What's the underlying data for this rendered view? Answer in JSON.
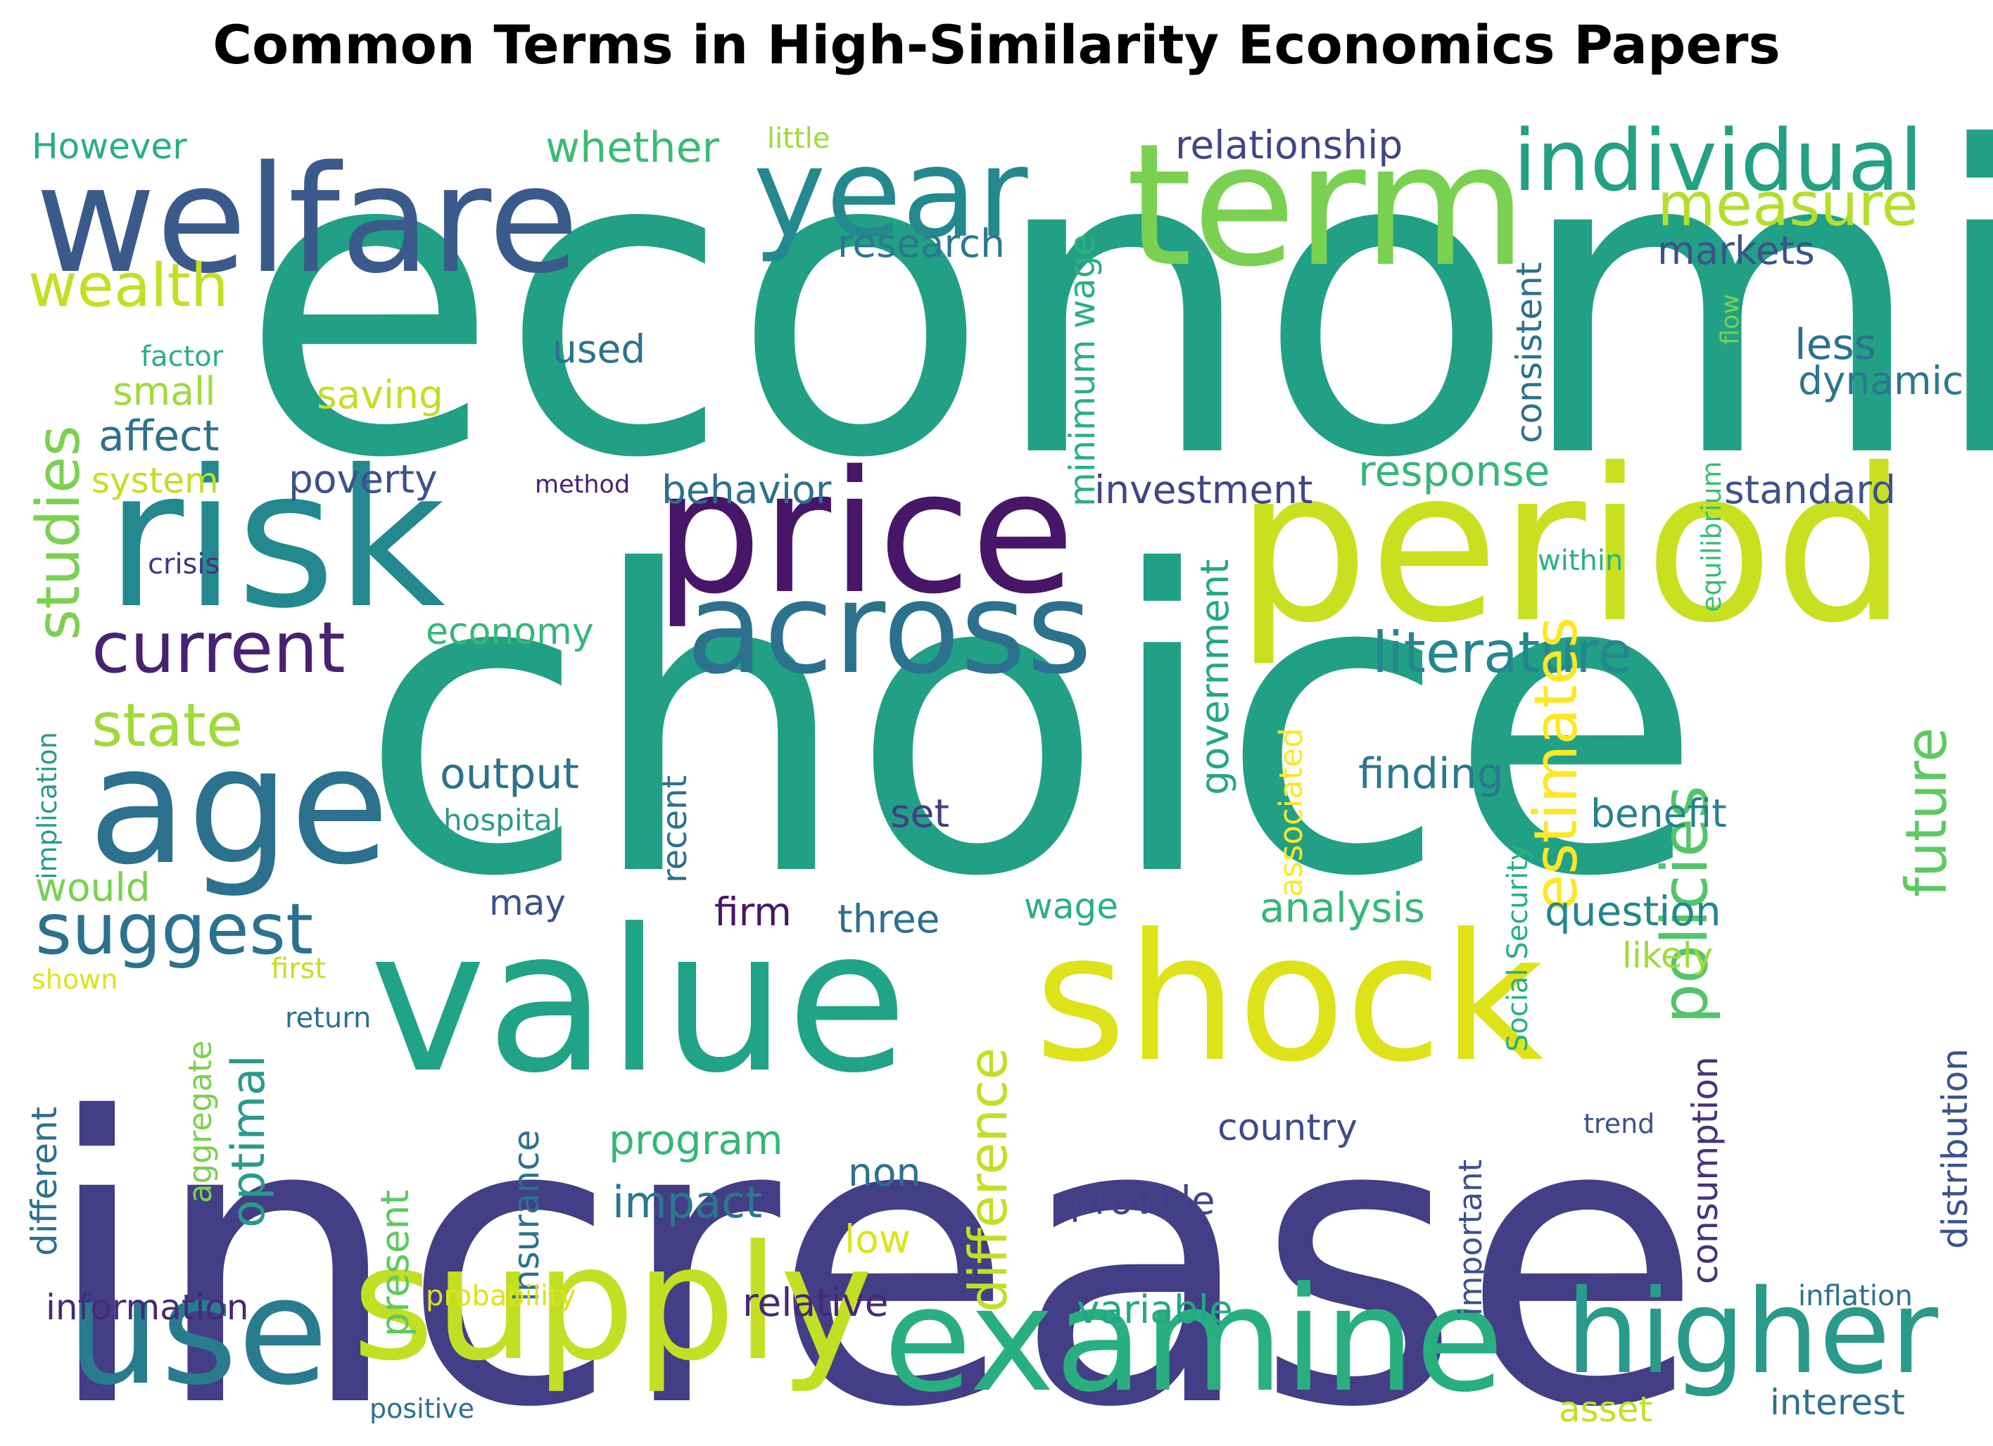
{
  "title": "Common Terms in High-Similarity Economics Papers",
  "colormap": "viridis",
  "words": [
    {
      "text": "economic",
      "color": "#21a085"
    },
    {
      "text": "choice",
      "color": "#21a085"
    },
    {
      "text": "increase",
      "color": "#433e85"
    },
    {
      "text": "welfare",
      "color": "#3b5a8c"
    },
    {
      "text": "year",
      "color": "#23898e"
    },
    {
      "text": "term",
      "color": "#7ad151"
    },
    {
      "text": "individual",
      "color": "#24a084"
    },
    {
      "text": "measure",
      "color": "#b5de2b"
    },
    {
      "text": "risk",
      "color": "#23898e"
    },
    {
      "text": "price",
      "color": "#471669"
    },
    {
      "text": "period",
      "color": "#c8e020"
    },
    {
      "text": "across",
      "color": "#2c718e"
    },
    {
      "text": "age",
      "color": "#2c718e"
    },
    {
      "text": "value",
      "color": "#20a386"
    },
    {
      "text": "shock",
      "color": "#dde318"
    },
    {
      "text": "use",
      "color": "#287c8e"
    },
    {
      "text": "supply",
      "color": "#c2df23"
    },
    {
      "text": "examine",
      "color": "#29af7f"
    },
    {
      "text": "higher",
      "color": "#2a9a8a"
    },
    {
      "text": "wealth",
      "color": "#c2df23"
    },
    {
      "text": "studies",
      "color": "#7ad151"
    },
    {
      "text": "current",
      "color": "#482173"
    },
    {
      "text": "state",
      "color": "#a0da39"
    },
    {
      "text": "suggest",
      "color": "#2c718e"
    },
    {
      "text": "literature",
      "color": "#24868e"
    },
    {
      "text": "estimates",
      "color": "#fde725"
    },
    {
      "text": "policies",
      "color": "#52c569"
    },
    {
      "text": "future",
      "color": "#5ec962"
    },
    {
      "text": "However",
      "color": "#29af7f"
    },
    {
      "text": "whether",
      "color": "#3cbb75"
    },
    {
      "text": "little",
      "color": "#a0da39"
    },
    {
      "text": "relationship",
      "color": "#414487"
    },
    {
      "text": "research",
      "color": "#2a788e"
    },
    {
      "text": "markets",
      "color": "#3b528b"
    },
    {
      "text": "minimum wage",
      "color": "#2ab07f"
    },
    {
      "text": "consistent",
      "color": "#2c718e"
    },
    {
      "text": "flow",
      "color": "#7ad151"
    },
    {
      "text": "factor",
      "color": "#2ab07f"
    },
    {
      "text": "small",
      "color": "#a0da39"
    },
    {
      "text": "used",
      "color": "#2c718e"
    },
    {
      "text": "saving",
      "color": "#c2df23"
    },
    {
      "text": "affect",
      "color": "#2c718e"
    },
    {
      "text": "system",
      "color": "#c2df23"
    },
    {
      "text": "poverty",
      "color": "#3b528b"
    },
    {
      "text": "method",
      "color": "#482173"
    },
    {
      "text": "less",
      "color": "#2c718e"
    },
    {
      "text": "dynamic",
      "color": "#2a788e"
    },
    {
      "text": "equilibrium",
      "color": "#3cbb75"
    },
    {
      "text": "investment",
      "color": "#414487"
    },
    {
      "text": "response",
      "color": "#35b779"
    },
    {
      "text": "behavior",
      "color": "#2c718e"
    },
    {
      "text": "standard",
      "color": "#3b528b"
    },
    {
      "text": "crisis",
      "color": "#46327e"
    },
    {
      "text": "within",
      "color": "#2ab07f"
    },
    {
      "text": "economy",
      "color": "#35b779"
    },
    {
      "text": "government",
      "color": "#22a884"
    },
    {
      "text": "implication",
      "color": "#2a9a8a"
    },
    {
      "text": "associated",
      "color": "#fde725"
    },
    {
      "text": "output",
      "color": "#2c718e"
    },
    {
      "text": "recent",
      "color": "#2c718e"
    },
    {
      "text": "finding",
      "color": "#2a788e"
    },
    {
      "text": "hospital",
      "color": "#2a9a8a"
    },
    {
      "text": "set",
      "color": "#433e85"
    },
    {
      "text": "benefit",
      "color": "#26828e"
    },
    {
      "text": "Social Security",
      "color": "#2ab07f"
    },
    {
      "text": "would",
      "color": "#7ad151"
    },
    {
      "text": "may",
      "color": "#3b528b"
    },
    {
      "text": "firm",
      "color": "#471669"
    },
    {
      "text": "three",
      "color": "#2c718e"
    },
    {
      "text": "wage",
      "color": "#2ab07f"
    },
    {
      "text": "analysis",
      "color": "#35b779"
    },
    {
      "text": "question",
      "color": "#24868e"
    },
    {
      "text": "likely",
      "color": "#a0da39"
    },
    {
      "text": "difference",
      "color": "#c2df23"
    },
    {
      "text": "distribution",
      "color": "#3b528b"
    },
    {
      "text": "optimal",
      "color": "#2a9a8a"
    },
    {
      "text": "aggregate",
      "color": "#7ad151"
    },
    {
      "text": "first",
      "color": "#c2df23"
    },
    {
      "text": "shown",
      "color": "#dde318"
    },
    {
      "text": "return",
      "color": "#2c718e"
    },
    {
      "text": "different",
      "color": "#2c718e"
    },
    {
      "text": "insurance",
      "color": "#2c718e"
    },
    {
      "text": "consumption",
      "color": "#46327e"
    },
    {
      "text": "country",
      "color": "#3e4a89"
    },
    {
      "text": "trend",
      "color": "#3b528b"
    },
    {
      "text": "program",
      "color": "#35b779"
    },
    {
      "text": "non",
      "color": "#2c718e"
    },
    {
      "text": "impact",
      "color": "#2a788e"
    },
    {
      "text": "important",
      "color": "#3b528b"
    },
    {
      "text": "provide",
      "color": "#414487"
    },
    {
      "text": "low",
      "color": "#dde318"
    },
    {
      "text": "present",
      "color": "#5ec962"
    },
    {
      "text": "information",
      "color": "#482878"
    },
    {
      "text": "probability",
      "color": "#dde318"
    },
    {
      "text": "relative",
      "color": "#482878"
    },
    {
      "text": "variable",
      "color": "#22a884"
    },
    {
      "text": "inflation",
      "color": "#2c718e"
    },
    {
      "text": "positive",
      "color": "#2c718e"
    },
    {
      "text": "asset",
      "color": "#c2df23"
    },
    {
      "text": "interest",
      "color": "#2c718e"
    }
  ]
}
